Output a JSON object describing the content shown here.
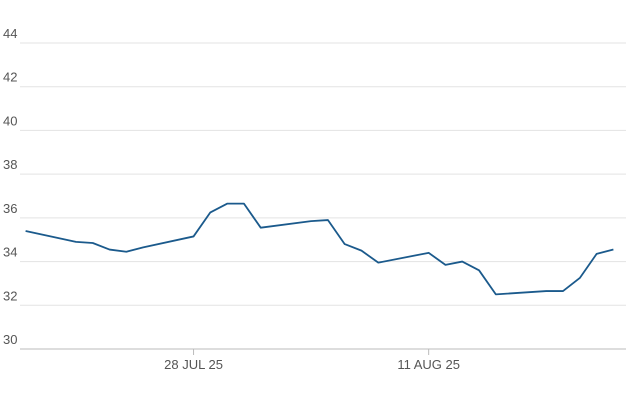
{
  "chart_data": {
    "type": "line",
    "x": [
      "2025-07-18",
      "2025-07-21",
      "2025-07-22",
      "2025-07-23",
      "2025-07-24",
      "2025-07-25",
      "2025-07-28",
      "2025-07-29",
      "2025-07-30",
      "2025-07-31",
      "2025-08-01",
      "2025-08-04",
      "2025-08-05",
      "2025-08-06",
      "2025-08-07",
      "2025-08-08",
      "2025-08-11",
      "2025-08-12",
      "2025-08-13",
      "2025-08-14",
      "2025-08-15",
      "2025-08-18",
      "2025-08-19",
      "2025-08-20",
      "2025-08-21",
      "2025-08-22"
    ],
    "series": [
      {
        "color": "#1b5a8c",
        "values": [
          35.4,
          34.9,
          34.85,
          34.55,
          34.45,
          34.65,
          35.15,
          36.25,
          36.65,
          36.65,
          35.55,
          35.85,
          35.9,
          34.8,
          34.5,
          33.95,
          34.4,
          33.85,
          34.0,
          33.6,
          32.5,
          32.65,
          32.65,
          33.25,
          34.35,
          34.55
        ]
      }
    ],
    "xlim": [
      "2025-07-17T16:00Z",
      "2025-08-22T18:00Z"
    ],
    "xticks": [
      {
        "value": "2025-07-28",
        "label": "28 JUL 25"
      },
      {
        "value": "2025-08-11",
        "label": "11 AUG 25"
      }
    ],
    "ylim": [
      30,
      44
    ],
    "yticks": [
      30,
      32,
      34,
      36,
      38,
      40,
      42,
      44
    ],
    "grid": true
  }
}
